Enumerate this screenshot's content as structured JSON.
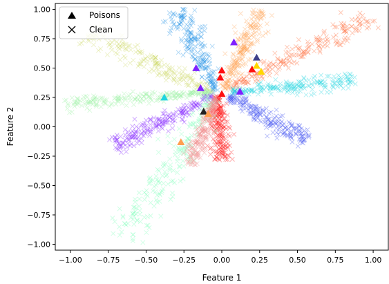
{
  "chart_data": {
    "type": "scatter",
    "title": "",
    "xlabel": "Feature 1",
    "ylabel": "Feature 2",
    "xlim": [
      -1.1,
      1.1
    ],
    "ylim": [
      -1.05,
      1.05
    ],
    "xticks": [
      -1.0,
      -0.75,
      -0.5,
      -0.25,
      0.0,
      0.25,
      0.5,
      0.75,
      1.0
    ],
    "xtick_labels": [
      "−1.00",
      "−0.75",
      "−0.50",
      "−0.25",
      "0.00",
      "0.25",
      "0.50",
      "0.75",
      "1.00"
    ],
    "yticks": [
      -1.0,
      -0.75,
      -0.5,
      -0.25,
      0.0,
      0.25,
      0.5,
      0.75,
      1.0
    ],
    "ytick_labels": [
      "−1.00",
      "−0.75",
      "−0.50",
      "−0.25",
      "0.00",
      "0.25",
      "0.50",
      "0.75",
      "1.00"
    ],
    "grid": false,
    "legend": {
      "placement": "top-left",
      "entries": [
        {
          "label": "Poisons",
          "marker": "triangle"
        },
        {
          "label": "Clean",
          "marker": "x"
        }
      ]
    },
    "clean_clusters": [
      {
        "color": "#ff6633",
        "start": [
          0.05,
          0.33
        ],
        "end": [
          0.95,
          0.9
        ],
        "width": 0.05
      },
      {
        "color": "#1e90e6",
        "start": [
          -0.04,
          0.3
        ],
        "end": [
          -0.27,
          0.96
        ],
        "width": 0.05
      },
      {
        "color": "#ffa050",
        "start": [
          0.02,
          0.31
        ],
        "end": [
          0.25,
          0.97
        ],
        "width": 0.04
      },
      {
        "color": "#cfd96a",
        "start": [
          -0.06,
          0.3
        ],
        "end": [
          -0.85,
          0.78
        ],
        "width": 0.05
      },
      {
        "color": "#20d4e0",
        "start": [
          0.06,
          0.3
        ],
        "end": [
          0.85,
          0.38
        ],
        "width": 0.035
      },
      {
        "color": "#98f0a0",
        "start": [
          -0.06,
          0.29
        ],
        "end": [
          -1.0,
          0.2
        ],
        "width": 0.03
      },
      {
        "color": "#8020ff",
        "start": [
          -0.06,
          0.26
        ],
        "end": [
          -0.68,
          -0.15
        ],
        "width": 0.045
      },
      {
        "color": "#4050f0",
        "start": [
          0.05,
          0.26
        ],
        "end": [
          0.53,
          -0.1
        ],
        "width": 0.045
      },
      {
        "color": "#ff1010",
        "start": [
          -0.03,
          0.26
        ],
        "end": [
          0.0,
          -0.26
        ],
        "width": 0.035
      },
      {
        "color": "#7cffb8",
        "start": [
          -0.06,
          0.25
        ],
        "end": [
          -0.62,
          -0.9
        ],
        "width": 0.07
      },
      {
        "color": "#f09090",
        "start": [
          -0.04,
          0.25
        ],
        "end": [
          -0.2,
          -0.3
        ],
        "width": 0.03
      }
    ],
    "poisons": [
      {
        "x": 0.08,
        "y": 0.72,
        "color": "#8020ff"
      },
      {
        "x": 0.23,
        "y": 0.59,
        "color": "#404088"
      },
      {
        "x": -0.17,
        "y": 0.5,
        "color": "#8020ff"
      },
      {
        "x": 0.0,
        "y": 0.48,
        "color": "#ff1010"
      },
      {
        "x": 0.2,
        "y": 0.49,
        "color": "#ff1010"
      },
      {
        "x": 0.23,
        "y": 0.52,
        "color": "#ffd700"
      },
      {
        "x": 0.26,
        "y": 0.47,
        "color": "#ffd700"
      },
      {
        "x": -0.01,
        "y": 0.42,
        "color": "#ff1010"
      },
      {
        "x": -0.14,
        "y": 0.33,
        "color": "#8020ff"
      },
      {
        "x": 0.12,
        "y": 0.3,
        "color": "#8020ff"
      },
      {
        "x": 0.0,
        "y": 0.28,
        "color": "#ff1010"
      },
      {
        "x": -0.38,
        "y": 0.25,
        "color": "#20d4e0"
      },
      {
        "x": -0.12,
        "y": 0.13,
        "color": "#222222"
      },
      {
        "x": -0.09,
        "y": 0.11,
        "color": "#ffa050"
      },
      {
        "x": -0.27,
        "y": -0.13,
        "color": "#ffa050"
      }
    ]
  }
}
